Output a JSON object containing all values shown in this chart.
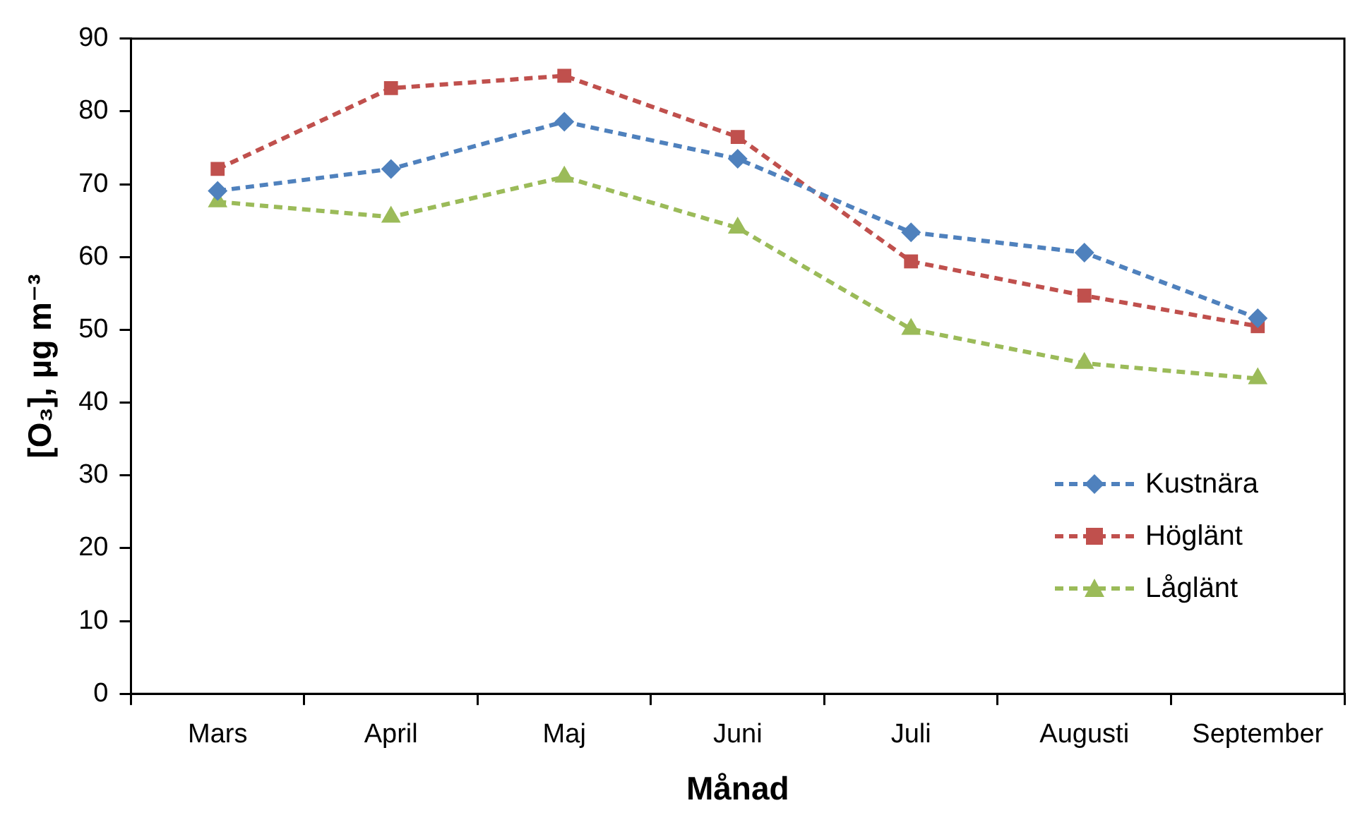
{
  "chart_data": {
    "type": "line",
    "xlabel": "Månad",
    "ylabel": "[O₃], µg m⁻³",
    "categories": [
      "Mars",
      "April",
      "Maj",
      "Juni",
      "Juli",
      "Augusti",
      "September"
    ],
    "series": [
      {
        "name": "Kustnära",
        "color": "#4f81bd",
        "marker": "diamond",
        "values": [
          69.1,
          72.1,
          78.6,
          73.5,
          63.4,
          60.6,
          51.6
        ]
      },
      {
        "name": "Höglänt",
        "color": "#c0504d",
        "marker": "square",
        "values": [
          72.1,
          83.2,
          84.9,
          76.5,
          59.4,
          54.7,
          50.5
        ]
      },
      {
        "name": "Låglänt",
        "color": "#9bbb59",
        "marker": "triangle",
        "values": [
          67.6,
          65.5,
          71,
          64,
          50.1,
          45.4,
          43.3
        ]
      }
    ],
    "ylim": [
      0,
      90
    ],
    "yticks": [
      0,
      10,
      20,
      30,
      40,
      50,
      60,
      70,
      80,
      90
    ],
    "grid": false,
    "legend": "bottom right",
    "line_style": "dashed"
  }
}
